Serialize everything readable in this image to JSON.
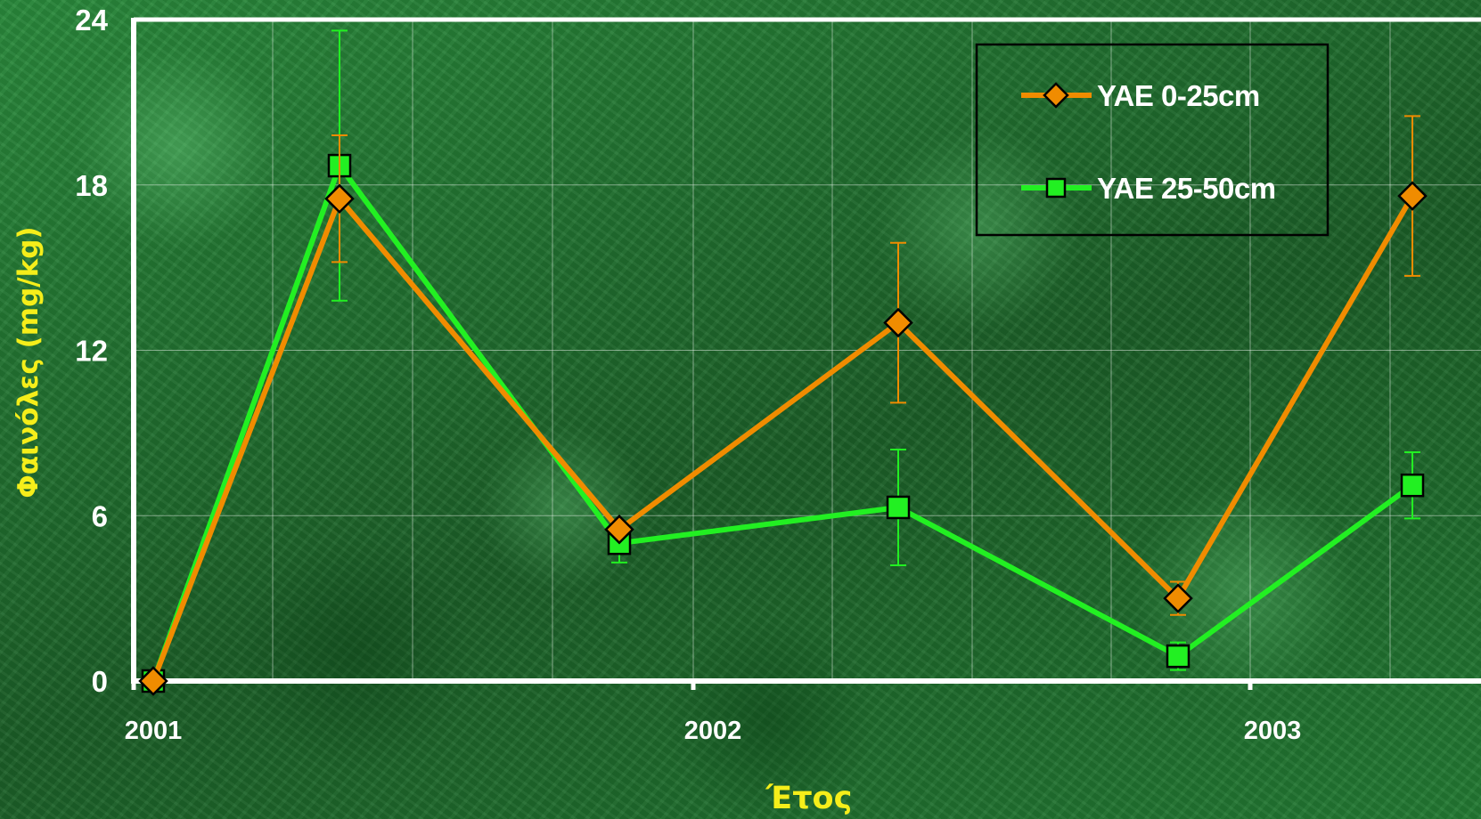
{
  "chart_data": {
    "type": "line",
    "xlabel": "Έτος",
    "ylabel": "Φαινόλες (mg/kg)",
    "xticks": [
      "2001",
      "2002",
      "2003"
    ],
    "yticks": [
      "0",
      "6",
      "12",
      "18",
      "24"
    ],
    "ylim": [
      0,
      24
    ],
    "grid": true,
    "legend_position": "top-right",
    "series": [
      {
        "name": "YAE 0-25cm",
        "color": "#f08c00",
        "marker": "diamond",
        "values": [
          0,
          17.5,
          5.5,
          13.0,
          3.0,
          17.6
        ],
        "error": [
          0,
          2.3,
          0.2,
          2.9,
          0.6,
          2.9
        ]
      },
      {
        "name": "YAE 25-50cm",
        "color": "#22f022",
        "marker": "square",
        "values": [
          0,
          18.7,
          5.0,
          6.3,
          0.9,
          7.1
        ],
        "error": [
          0,
          4.9,
          0.7,
          2.1,
          0.5,
          1.2
        ]
      }
    ]
  }
}
